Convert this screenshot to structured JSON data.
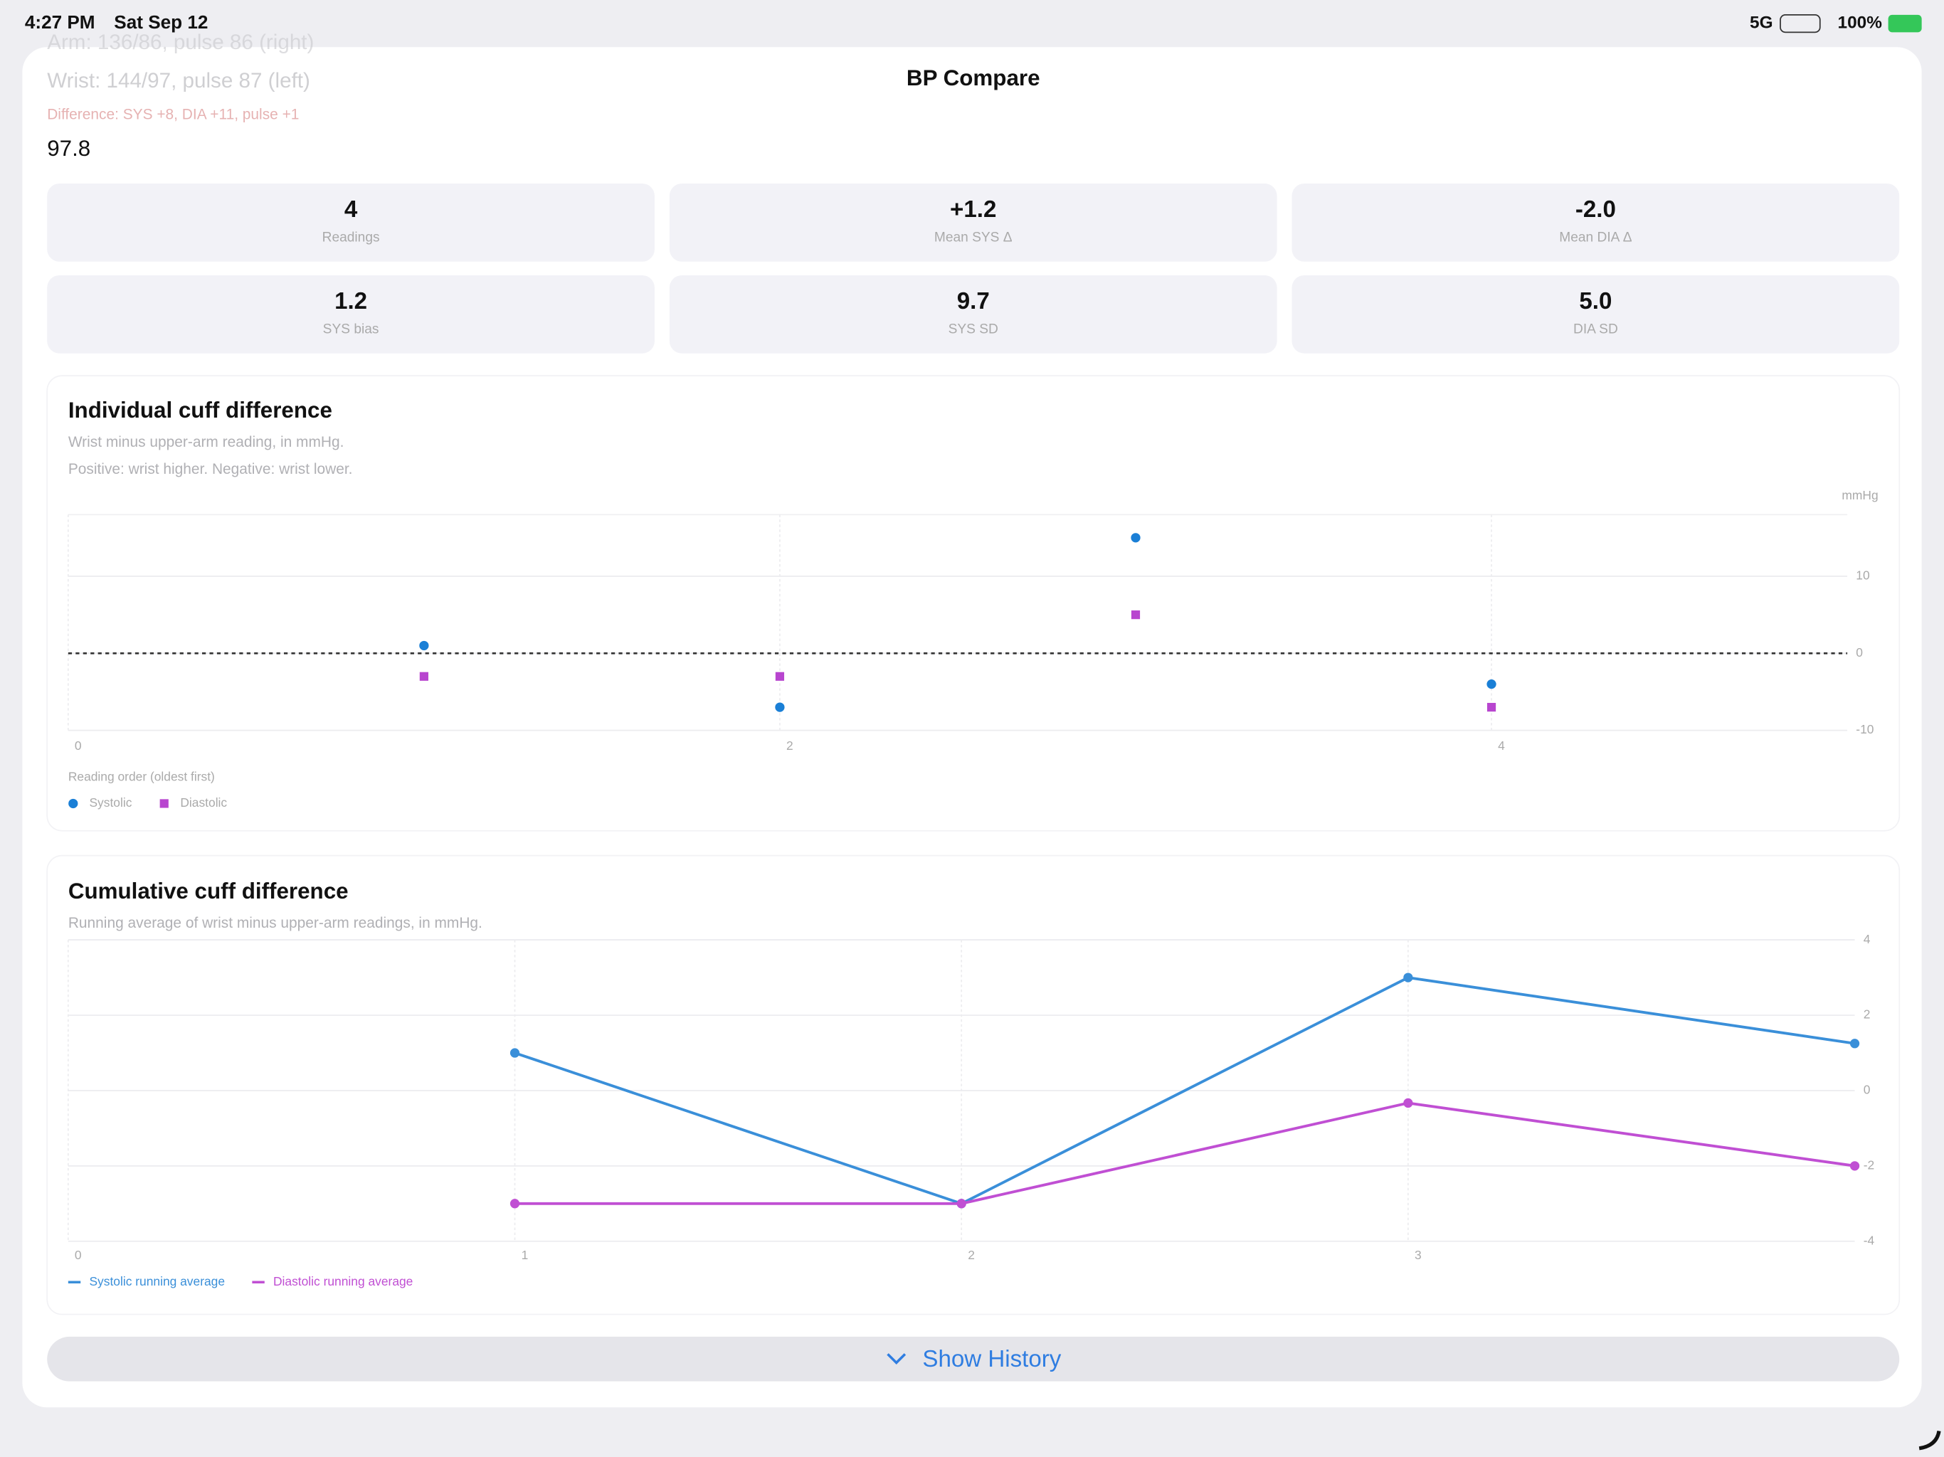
{
  "status_bar": {
    "time": "4:27 PM",
    "date": "Sat Sep 12",
    "network": "5G",
    "battery": "100%"
  },
  "header": {
    "title": "BP Compare",
    "lines": [
      "Arm: 136/86, pulse 86 (right)",
      "Wrist: 144/97, pulse 87 (left)",
      "Difference: SYS +8, DIA +11, pulse +1"
    ],
    "value": "97.8"
  },
  "stats": [
    {
      "value": "4",
      "label": "Readings"
    },
    {
      "value": "+1.2",
      "label": "Mean SYS Δ"
    },
    {
      "value": "-2.0",
      "label": "Mean DIA Δ"
    },
    {
      "value": "1.2",
      "label": "SYS bias"
    },
    {
      "value": "9.7",
      "label": "SYS SD"
    },
    {
      "value": "5.0",
      "label": "DIA SD"
    }
  ],
  "charts": [
    {
      "type": "scatter",
      "title": "Individual cuff difference",
      "subtitle": [
        "Wrist minus upper-arm reading, in mmHg.",
        "Positive: wrist higher. Negative: wrist lower."
      ],
      "y_unit": "mmHg",
      "x_label": "Reading order (oldest first)",
      "xlim": [
        0,
        5
      ],
      "xticks": [
        0,
        2,
        4
      ],
      "ylim": [
        -10,
        18
      ],
      "yticks": [
        -10,
        0,
        10
      ],
      "grid": true,
      "zero_line": true,
      "series": [
        {
          "name": "Systolic",
          "color": "#1a7fd6",
          "marker": "circle",
          "x": [
            1,
            2,
            3,
            4
          ],
          "values": [
            1,
            -7,
            15,
            -4
          ]
        },
        {
          "name": "Diastolic",
          "color": "#b845cf",
          "marker": "square",
          "x": [
            1,
            2,
            3,
            4
          ],
          "values": [
            -3,
            -3,
            5,
            -7
          ]
        }
      ]
    },
    {
      "type": "line",
      "title": "Cumulative cuff difference",
      "subtitle": [
        "Running average of wrist minus upper-arm readings, in mmHg."
      ],
      "xlim": [
        0,
        4
      ],
      "xticks": [
        0,
        1,
        2,
        3
      ],
      "ylim": [
        -4,
        4
      ],
      "yticks": [
        -4,
        -2,
        0,
        2,
        4
      ],
      "grid": true,
      "zero_line": false,
      "series": [
        {
          "name": "Systolic running average",
          "color": "#3a8fd9",
          "marker": "circle",
          "x": [
            1,
            2,
            3,
            4
          ],
          "values": [
            1,
            -3,
            3,
            1.25
          ]
        },
        {
          "name": "Diastolic running average",
          "color": "#c04fd3",
          "marker": "circle",
          "x": [
            1,
            2,
            3,
            4
          ],
          "values": [
            -3,
            -3,
            -0.33,
            -2
          ]
        }
      ]
    }
  ],
  "button": {
    "label": "Show History"
  }
}
